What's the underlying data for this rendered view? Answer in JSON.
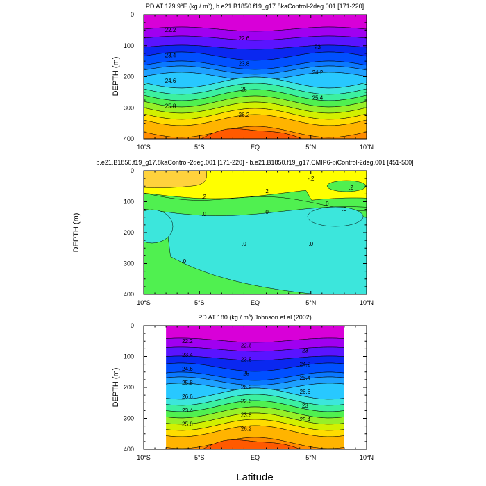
{
  "chart_data": [
    {
      "type": "contour",
      "title": "PD AT 179.9°E (kg / m",
      "title_sup": "3",
      "title_rest": "), b.e21.B1850.f19_g17.8kaControl-2deg.001 [171-220]",
      "ylabel": "DEPTH (m)",
      "xlim": [
        -10,
        10
      ],
      "ylim": [
        0,
        400
      ],
      "y_inverted": true,
      "yticks": [
        "0",
        "100",
        "200",
        "300",
        "400"
      ],
      "xticks": [
        "10°S",
        "5°S",
        "EQ",
        "5°N",
        "10°N"
      ],
      "contour_interval": 0.4,
      "contour_labels": [
        "22.2",
        "22.6",
        "23",
        "23.4",
        "23.8",
        "24.2",
        "24.6",
        "25",
        "25.4",
        "25.8",
        "26.2"
      ],
      "fill_colors": [
        "#d800d8",
        "#a000f0",
        "#5a14ff",
        "#0a28f0",
        "#0050ff",
        "#0a78ff",
        "#1ea0ff",
        "#28c8ff",
        "#3ce6dc",
        "#3cf0a0",
        "#50f050",
        "#96f028",
        "#d2f000",
        "#ffdc00",
        "#ffb400",
        "#ff8c00",
        "#ff5a00",
        "#f03200",
        "#e01e00",
        "#d21400",
        "#c01000"
      ]
    },
    {
      "type": "contour",
      "title": "b.e21.B1850.f19_g17.8kaControl-2deg.001 [171-220] - b.e21.B1850.f19_g17.CMIP6-piControl-2deg.001 [451-500]",
      "ylabel": "DEPTH (m)",
      "xlim": [
        -10,
        10
      ],
      "ylim": [
        0,
        400
      ],
      "y_inverted": true,
      "yticks": [
        "0",
        "100",
        "200",
        "300",
        "400"
      ],
      "xticks": [
        "10°S",
        "5°S",
        "EQ",
        "5°N",
        "10°N"
      ],
      "contour_labels": [
        ".2",
        ".2",
        ".2",
        "-.2",
        ".0",
        ".0",
        ".0",
        ".0",
        ".0",
        ".0",
        ".0"
      ],
      "fill_colors": [
        "#3ce6dc",
        "#3cf0a0",
        "#50f050",
        "#ffff00",
        "#ffdc00",
        "#ffd23c"
      ]
    },
    {
      "type": "contour",
      "title": "PD AT 180 (kg / m",
      "title_sup": "3",
      "title_rest": ") Johnson et al (2002)",
      "ylabel": "DEPTH (m)",
      "xlabel": "Latitude",
      "xlim": [
        -10,
        10
      ],
      "ylim": [
        0,
        400
      ],
      "data_lat_range": [
        -8,
        8
      ],
      "y_inverted": true,
      "yticks": [
        "0",
        "100",
        "200",
        "300",
        "400"
      ],
      "xticks": [
        "10°S",
        "5°S",
        "EQ",
        "5°N",
        "10°N"
      ],
      "contour_labels": [
        "22.2",
        "22.6",
        "23",
        "23.4",
        "23.8",
        "24.2",
        "24.6",
        "25",
        "25.4",
        "25.8",
        "26.2",
        "26.6",
        "26.6",
        "22.6",
        "23",
        "23.4",
        "23.8",
        "25.4",
        "25.8",
        "26.2"
      ],
      "fill_colors": [
        "#d800d8",
        "#a000f0",
        "#5a14ff",
        "#0a28f0",
        "#0050ff",
        "#0a78ff",
        "#1ea0ff",
        "#28c8ff",
        "#3ce6dc",
        "#3cf0a0",
        "#50f050",
        "#96f028",
        "#d2f000",
        "#ffdc00",
        "#ffb400",
        "#ff8c00",
        "#ff5a00",
        "#f03200",
        "#e01e00",
        "#d21400",
        "#c01000"
      ]
    }
  ],
  "xlabel": "Latitude"
}
